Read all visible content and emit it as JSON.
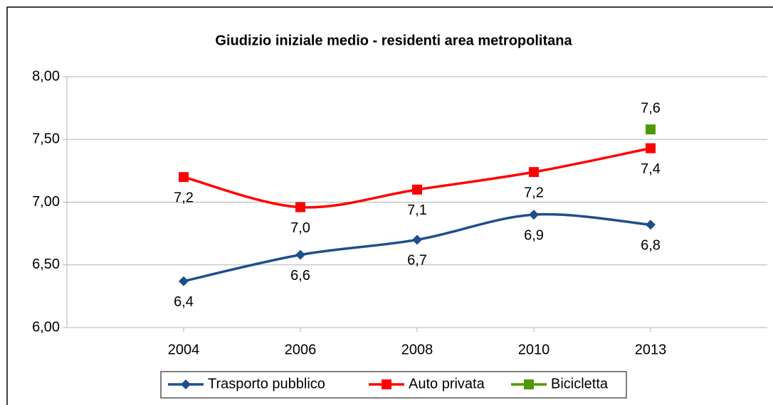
{
  "chart_data": {
    "type": "line",
    "title": "Giudizio iniziale medio - residenti area metropolitana",
    "categories": [
      "2004",
      "2006",
      "2008",
      "2010",
      "2013"
    ],
    "series": [
      {
        "name": "Trasporto pubblico",
        "color": "#1f4e8c",
        "marker": "diamond",
        "values": [
          6.37,
          6.58,
          6.7,
          6.9,
          6.82
        ],
        "value_labels": [
          "6,4",
          "6,6",
          "6,7",
          "6,9",
          "6,8"
        ],
        "label_position": "below"
      },
      {
        "name": "Auto privata",
        "color": "#ff0000",
        "marker": "square",
        "values": [
          7.2,
          6.96,
          7.1,
          7.24,
          7.43
        ],
        "value_labels": [
          "7,2",
          "7,0",
          "7,1",
          "7,2",
          "7,4"
        ],
        "label_position": "below"
      },
      {
        "name": "Bicicletta",
        "color": "#4e9a06",
        "marker": "square",
        "values": [
          null,
          null,
          null,
          null,
          7.58
        ],
        "value_labels": [
          null,
          null,
          null,
          null,
          "7,6"
        ],
        "label_position": "above"
      }
    ],
    "ylim": [
      6,
      8
    ],
    "yticks": [
      {
        "value": 6,
        "label": "6,00"
      },
      {
        "value": 6.5,
        "label": "6,50"
      },
      {
        "value": 7,
        "label": "7,00"
      },
      {
        "value": 7.5,
        "label": "7,50"
      },
      {
        "value": 8,
        "label": "8,00"
      }
    ],
    "grid": true,
    "legend": "bottom"
  }
}
